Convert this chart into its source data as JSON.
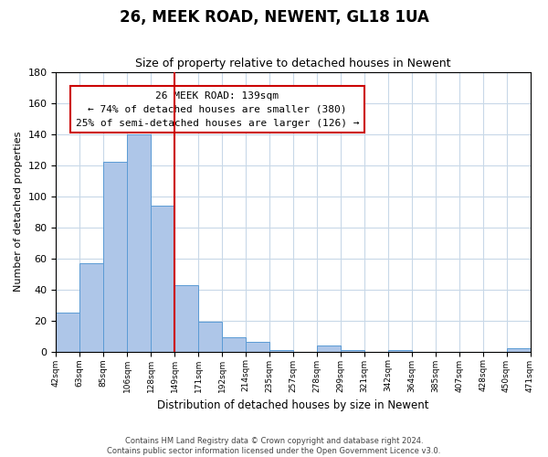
{
  "title": "26, MEEK ROAD, NEWENT, GL18 1UA",
  "subtitle": "Size of property relative to detached houses in Newent",
  "xlabel": "Distribution of detached houses by size in Newent",
  "ylabel": "Number of detached properties",
  "bar_labels": [
    "42sqm",
    "63sqm",
    "85sqm",
    "106sqm",
    "128sqm",
    "149sqm",
    "171sqm",
    "192sqm",
    "214sqm",
    "235sqm",
    "257sqm",
    "278sqm",
    "299sqm",
    "321sqm",
    "342sqm",
    "364sqm",
    "385sqm",
    "407sqm",
    "428sqm",
    "450sqm",
    "471sqm"
  ],
  "bar_values": [
    25,
    57,
    122,
    140,
    94,
    43,
    19,
    9,
    6,
    1,
    0,
    4,
    1,
    0,
    1,
    0,
    0,
    0,
    0,
    2
  ],
  "bar_color": "#aec6e8",
  "bar_edge_color": "#5b9bd5",
  "vline_x": 5.0,
  "vline_color": "#cc0000",
  "ylim": [
    0,
    180
  ],
  "yticks": [
    0,
    20,
    40,
    60,
    80,
    100,
    120,
    140,
    160,
    180
  ],
  "annotation_title": "26 MEEK ROAD: 139sqm",
  "annotation_line1": "← 74% of detached houses are smaller (380)",
  "annotation_line2": "25% of semi-detached houses are larger (126) →",
  "footer_line1": "Contains HM Land Registry data © Crown copyright and database right 2024.",
  "footer_line2": "Contains public sector information licensed under the Open Government Licence v3.0.",
  "background_color": "#ffffff",
  "grid_color": "#c8d8e8"
}
